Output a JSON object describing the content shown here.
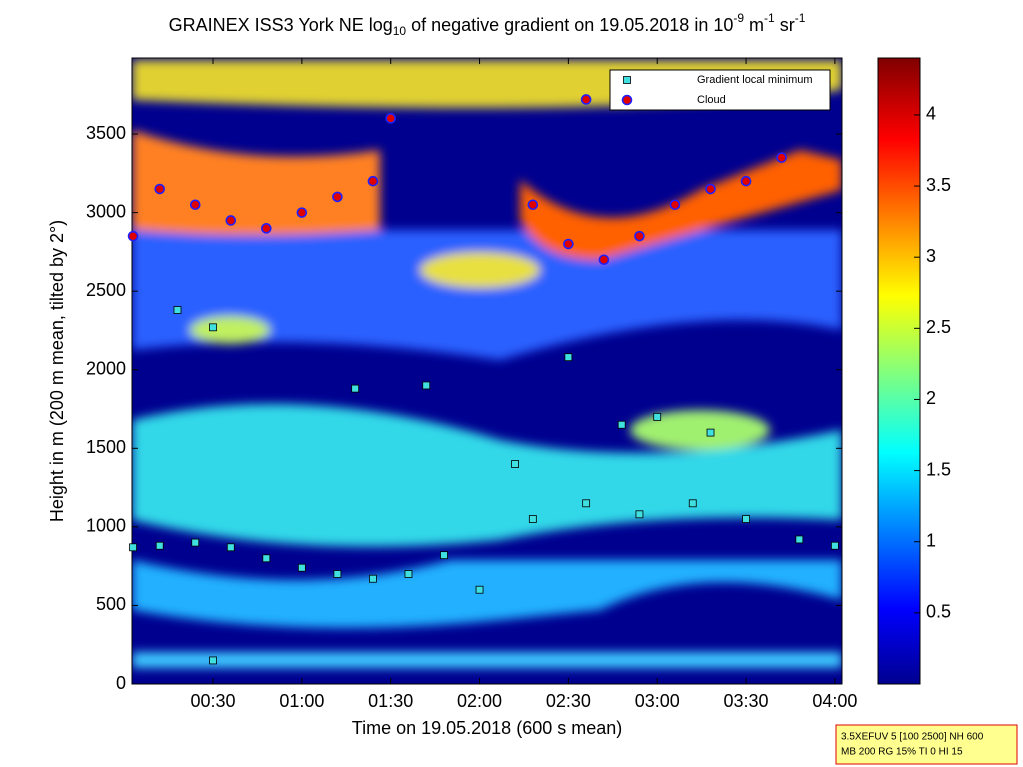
{
  "chart_data": {
    "type": "scatter",
    "title": [
      "GRAINEX ISS3 York NE log",
      "10",
      " of negative gradient on 19.05.2018 in 10",
      "-9",
      " m",
      "-1",
      " sr",
      "-1"
    ],
    "x_label": "Time on 19.05.2018 (600 s mean)",
    "y_label": "Height in m (200 m mean, tilted by 2°)",
    "xlim": [
      0.044,
      4.04
    ],
    "xticks": [
      {
        "value": 0.5,
        "label": "00:30"
      },
      {
        "value": 1,
        "label": "01:00"
      },
      {
        "value": 1.5,
        "label": "01:30"
      },
      {
        "value": 2,
        "label": "02:00"
      },
      {
        "value": 2.5,
        "label": "02:30"
      },
      {
        "value": 3,
        "label": "03:00"
      },
      {
        "value": 3.5,
        "label": "03:30"
      },
      {
        "value": 4,
        "label": "04:00"
      }
    ],
    "ylim": [
      0,
      3984
    ],
    "yticks": [
      0,
      500,
      1000,
      1500,
      2000,
      2500,
      3000,
      3500
    ],
    "clim": [
      0,
      4.4
    ],
    "cticks": [
      0.5,
      1,
      1.5,
      2,
      2.5,
      3,
      3.5,
      4
    ],
    "legend": "upper right",
    "series": [
      {
        "name": "Gradient local minimum",
        "color": "#40e0e0",
        "marker": "square",
        "x": [
          0.05,
          0.2,
          0.4,
          0.6,
          0.8,
          1.0,
          1.2,
          1.4,
          1.6,
          1.8,
          2.0,
          2.3,
          2.6,
          2.9,
          3.2,
          3.5,
          3.8,
          4.0,
          2.8,
          3.0,
          3.3,
          0.5,
          1.3,
          0.3,
          0.5,
          2.5,
          1.7,
          2.2
        ],
        "values": [
          870,
          880,
          900,
          870,
          800,
          740,
          700,
          670,
          700,
          820,
          600,
          1050,
          1150,
          1080,
          1150,
          1050,
          920,
          880,
          1650,
          1700,
          1600,
          2270,
          1880,
          2380,
          150,
          2080,
          1900,
          1400
        ]
      },
      {
        "name": "Cloud",
        "color": "#e00000",
        "marker": "circle",
        "x": [
          0.05,
          0.2,
          0.4,
          0.6,
          0.8,
          1.0,
          1.2,
          1.4,
          2.3,
          2.5,
          2.7,
          2.9,
          3.1,
          3.3,
          3.5,
          3.7,
          2.6,
          1.5
        ],
        "values": [
          2850,
          3150,
          3050,
          2950,
          2900,
          3000,
          3100,
          3200,
          3050,
          2800,
          2700,
          2850,
          3050,
          3150,
          3200,
          3350,
          3720,
          3600
        ]
      }
    ],
    "annotation": [
      "3.5XEFUV 5 [100 2500] NH 600",
      "MB 200 RG 15% TI 0 HI 15"
    ]
  }
}
